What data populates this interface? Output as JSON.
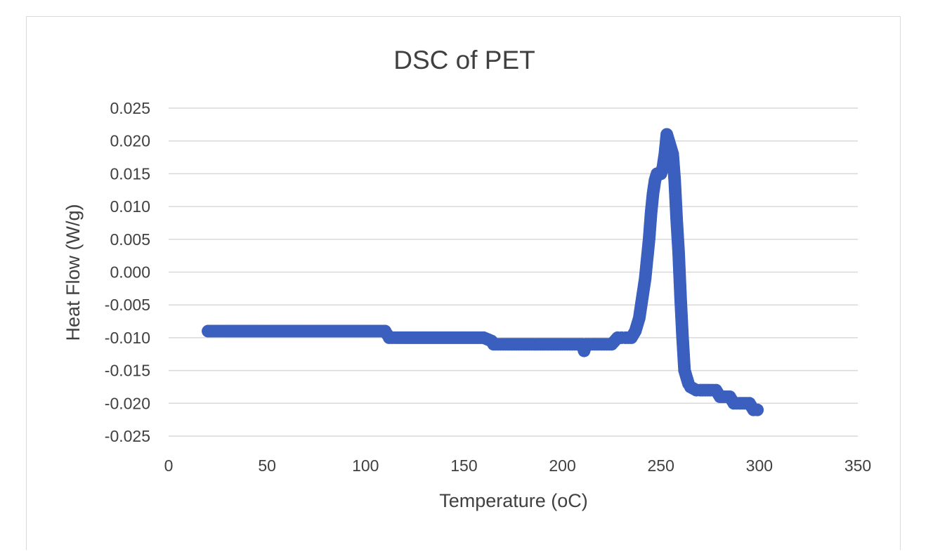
{
  "chart_data": {
    "type": "scatter",
    "title": "DSC  of PET",
    "xlabel": "Temperature (oC)",
    "ylabel": "Heat Flow (W/g)",
    "xlim": [
      0,
      350
    ],
    "ylim": [
      -0.025,
      0.025
    ],
    "x_ticks": [
      "0",
      "50",
      "100",
      "150",
      "200",
      "250",
      "300",
      "350"
    ],
    "y_ticks": [
      "0.025",
      "0.020",
      "0.015",
      "0.010",
      "0.005",
      "0.000",
      "-0.005",
      "-0.010",
      "-0.015",
      "-0.020",
      "-0.025"
    ],
    "grid": "horizontal",
    "legend": "none",
    "marker_color": "#3a5fbf",
    "series": [
      {
        "x": [
          20,
          25,
          30,
          40,
          50,
          60,
          70,
          80,
          90,
          100,
          105,
          110,
          111,
          112,
          115,
          120,
          130,
          140,
          150,
          160,
          164,
          165,
          166,
          170,
          180,
          190,
          200,
          205,
          210,
          211,
          212,
          215,
          220,
          225,
          228,
          230,
          232,
          235,
          237,
          239,
          240,
          241,
          242,
          243,
          244,
          245,
          246,
          247,
          248,
          249,
          250,
          251,
          252,
          253,
          254,
          255,
          256,
          257,
          258,
          259,
          260,
          261,
          262,
          263,
          264,
          265,
          268,
          270,
          275,
          278,
          280,
          285,
          287,
          290,
          295,
          297,
          299
        ],
        "y": [
          -0.009,
          -0.009,
          -0.009,
          -0.009,
          -0.009,
          -0.009,
          -0.009,
          -0.009,
          -0.009,
          -0.009,
          -0.009,
          -0.009,
          -0.0095,
          -0.01,
          -0.01,
          -0.01,
          -0.01,
          -0.01,
          -0.01,
          -0.01,
          -0.0105,
          -0.011,
          -0.011,
          -0.011,
          -0.011,
          -0.011,
          -0.011,
          -0.011,
          -0.011,
          -0.012,
          -0.011,
          -0.011,
          -0.011,
          -0.011,
          -0.01,
          -0.01,
          -0.01,
          -0.01,
          -0.009,
          -0.007,
          -0.005,
          -0.003,
          -0.001,
          0.002,
          0.005,
          0.009,
          0.012,
          0.014,
          0.015,
          0.015,
          0.015,
          0.016,
          0.018,
          0.021,
          0.02,
          0.019,
          0.018,
          0.014,
          0.008,
          0.003,
          -0.004,
          -0.01,
          -0.015,
          -0.016,
          -0.017,
          -0.0175,
          -0.018,
          -0.018,
          -0.018,
          -0.018,
          -0.019,
          -0.019,
          -0.02,
          -0.02,
          -0.02,
          -0.021,
          -0.021
        ]
      }
    ]
  }
}
